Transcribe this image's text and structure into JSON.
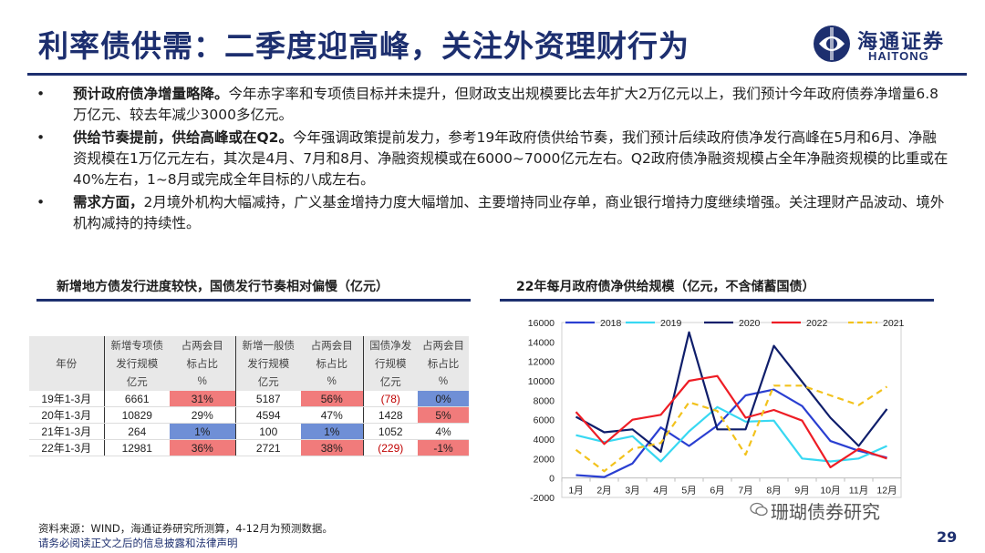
{
  "title": "利率债供需：二季度迎高峰，关注外资理财行为",
  "logo": {
    "cn": "海通证券",
    "en": "HAITONG"
  },
  "bullets": [
    {
      "bold": "预计政府债净增量略降。",
      "text": "今年赤字率和专项债目标并未提升，但财政支出规模要比去年扩大2万亿元以上，我们预计今年政府债券净增量6.8万亿元、较去年减少3000多亿元。"
    },
    {
      "bold": "供给节奏提前，供给高峰或在Q2。",
      "text": "今年强调政策提前发力，参考19年政府债供给节奏，我们预计后续政府债净发行高峰在5月和6月、净融资规模在1万亿元左右，其次是4月、7月和8月、净融资规模或在6000~7000亿元左右。Q2政府债净融资规模占全年净融资规模的比重或在40%左右，1~8月或完成全年目标的八成左右。"
    },
    {
      "bold": "需求方面，",
      "text": "2月境外机构大幅减持，广义基金增持力度大幅增加、主要增持同业存单，商业银行增持力度继续增强。关注理财产品波动、境外机构减持的持续性。"
    }
  ],
  "left_title": "新增地方债发行进度较快，国债发行节奏相对偏慢（亿元）",
  "right_title": "22年每月政府债净供给规模（亿元，不含储蓄国债）",
  "table": {
    "header1": [
      "",
      "新增专项债",
      "占两会目",
      "新增一般债",
      "占两会目",
      "国债净发",
      "占两会目"
    ],
    "header2": [
      "年份",
      "发行规模",
      "标占比",
      "发行规模",
      "标占比",
      "行规模",
      "标占比"
    ],
    "header3": [
      "",
      "亿元",
      "%",
      "亿元",
      "%",
      "亿元",
      "%"
    ],
    "rows": [
      [
        "19年1-3月",
        "6661",
        "31%",
        "5187",
        "56%",
        "(78)",
        "0%"
      ],
      [
        "20年1-3月",
        "10829",
        "29%",
        "4594",
        "47%",
        "1428",
        "5%"
      ],
      [
        "21年1-3月",
        "264",
        "1%",
        "100",
        "1%",
        "1052",
        "4%"
      ],
      [
        "22年1-3月",
        "12981",
        "36%",
        "2721",
        "38%",
        "(229)",
        "-1%"
      ]
    ]
  },
  "chart_data": {
    "type": "line",
    "categories": [
      "1月",
      "2月",
      "3月",
      "4月",
      "5月",
      "6月",
      "7月",
      "8月",
      "9月",
      "10月",
      "11月",
      "12月"
    ],
    "ylim": [
      -2000,
      16000
    ],
    "yticks": [
      "-2000",
      "0",
      "2000",
      "4000",
      "6000",
      "8000",
      "10000",
      "12000",
      "14000",
      "16000"
    ],
    "legend_placement": "top",
    "series": [
      {
        "name": "2018",
        "color": "#2a3fd1",
        "dash": false,
        "values": [
          300,
          100,
          1500,
          5200,
          3300,
          5400,
          8500,
          9100,
          7400,
          3800,
          2800,
          2100
        ]
      },
      {
        "name": "2019",
        "color": "#38d8f2",
        "dash": false,
        "values": [
          4400,
          3700,
          4300,
          1700,
          4800,
          7300,
          5800,
          5900,
          2000,
          1700,
          2000,
          3300
        ]
      },
      {
        "name": "2020",
        "color": "#0f1e6b",
        "dash": false,
        "values": [
          6300,
          4700,
          5000,
          2700,
          15000,
          5000,
          5000,
          13600,
          9900,
          6200,
          3300,
          7100
        ]
      },
      {
        "name": "2022",
        "color": "#ee1d25",
        "dash": false,
        "values": [
          6800,
          3500,
          6000,
          6500,
          10000,
          10500,
          6200,
          7000,
          5900,
          1100,
          3000,
          2000
        ]
      },
      {
        "name": "2021",
        "color": "#f2c21c",
        "dash": true,
        "values": [
          2900,
          700,
          3000,
          3600,
          7800,
          6900,
          2400,
          9500,
          9500,
          8500,
          7500,
          9400
        ]
      }
    ]
  },
  "source": "资料来源：WIND，海通证券研究所测算，4-12月为预测数据。",
  "legal": "请务必阅读正文之后的信息披露和法律声明",
  "watermark": "珊瑚债券研究",
  "page_number": "29"
}
